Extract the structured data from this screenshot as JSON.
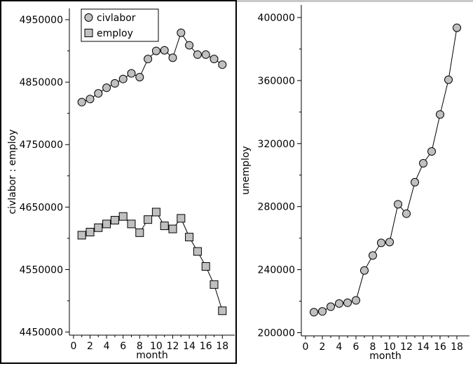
{
  "colors": {
    "marker_fill": "#c0c0c0",
    "marker_stroke": "#000000",
    "line": "#000000",
    "selected_border": "#000000",
    "unselected_border": "#c8c8c8"
  },
  "chart_data": [
    {
      "type": "line",
      "xlabel": "month",
      "ylabel": "civlabor : employ",
      "xlim": [
        -0.5,
        19.5
      ],
      "ylim": [
        4445000,
        4968000
      ],
      "xticks": [
        0,
        2,
        4,
        6,
        8,
        10,
        12,
        14,
        16,
        18
      ],
      "yticks": [
        4450000,
        4550000,
        4650000,
        4750000,
        4850000,
        4950000
      ],
      "legend": "top-left",
      "x": [
        1,
        2,
        3,
        4,
        5,
        6,
        7,
        8,
        9,
        10,
        11,
        12,
        13,
        14,
        15,
        16,
        17,
        18
      ],
      "series": [
        {
          "name": "civlabor",
          "marker": "circle",
          "values": [
            4818000,
            4823000,
            4832000,
            4841000,
            4848000,
            4855000,
            4864000,
            4858000,
            4887000,
            4900000,
            4901000,
            4889000,
            4929000,
            4909000,
            4894000,
            4894000,
            4887000,
            4878000
          ]
        },
        {
          "name": "employ",
          "marker": "square",
          "values": [
            4605000,
            4610000,
            4617000,
            4623000,
            4629000,
            4635000,
            4623000,
            4609000,
            4630000,
            4642000,
            4620000,
            4615000,
            4632000,
            4602000,
            4579000,
            4555000,
            4526000,
            4484000
          ]
        }
      ]
    },
    {
      "type": "line",
      "xlabel": "month",
      "ylabel": "unemploy",
      "xlim": [
        -0.5,
        19.5
      ],
      "ylim": [
        198000,
        408000
      ],
      "xticks": [
        0,
        2,
        4,
        6,
        8,
        10,
        12,
        14,
        16,
        18
      ],
      "yticks": [
        200000,
        240000,
        280000,
        320000,
        360000,
        400000
      ],
      "x": [
        1,
        2,
        3,
        4,
        5,
        6,
        7,
        8,
        9,
        10,
        11,
        12,
        13,
        14,
        15,
        16,
        17,
        18
      ],
      "series": [
        {
          "name": "unemploy",
          "marker": "circle",
          "values": [
            213000,
            213500,
            216500,
            218500,
            219000,
            220500,
            239500,
            249000,
            257000,
            257500,
            281500,
            275500,
            295500,
            307500,
            315000,
            338500,
            360500,
            393500
          ]
        }
      ]
    }
  ]
}
